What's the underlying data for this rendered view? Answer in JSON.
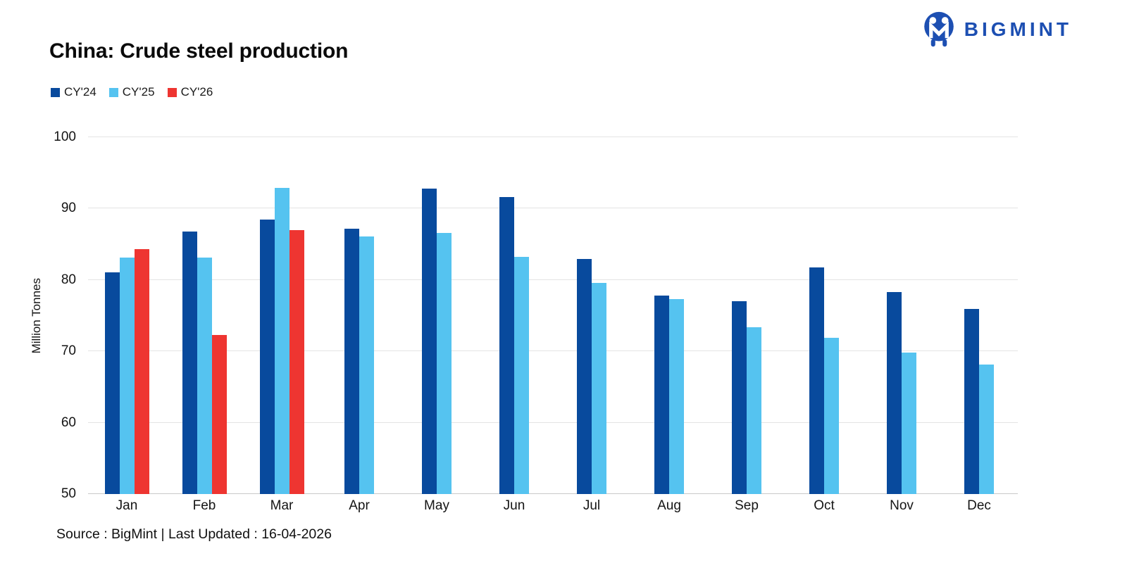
{
  "title": "China: Crude steel production",
  "logo": {
    "text": "BIGMINT",
    "color": "#1d4fb2"
  },
  "legend": [
    {
      "label": "CY'24",
      "color": "#084a9d"
    },
    {
      "label": "CY'25",
      "color": "#55c3f0"
    },
    {
      "label": "CY'26",
      "color": "#ee3531"
    }
  ],
  "footer": "Source : BigMint | Last Updated : 16-04-2026",
  "chart_data": {
    "type": "bar",
    "title": "China: Crude steel production",
    "xlabel": "",
    "ylabel": "Million Tonnes",
    "ylim": [
      50,
      100
    ],
    "yticks": [
      50,
      60,
      70,
      80,
      90,
      100
    ],
    "grid": "horizontal",
    "legend_position": "top-left",
    "categories": [
      "Jan",
      "Feb",
      "Mar",
      "Apr",
      "May",
      "Jun",
      "Jul",
      "Aug",
      "Sep",
      "Oct",
      "Nov",
      "Dec"
    ],
    "series": [
      {
        "name": "CY'24",
        "color": "#084a9d",
        "values": [
          81.1,
          86.8,
          88.5,
          87.2,
          92.8,
          91.6,
          82.9,
          77.8,
          77.0,
          81.8,
          78.3,
          75.9
        ]
      },
      {
        "name": "CY'25",
        "color": "#55c3f0",
        "values": [
          83.1,
          83.1,
          92.9,
          86.1,
          86.6,
          83.2,
          79.6,
          77.3,
          73.4,
          71.9,
          69.8,
          68.1
        ]
      },
      {
        "name": "CY'26",
        "color": "#ee3531",
        "values": [
          84.3,
          72.3,
          87.0,
          null,
          null,
          null,
          null,
          null,
          null,
          null,
          null,
          null
        ]
      }
    ]
  }
}
